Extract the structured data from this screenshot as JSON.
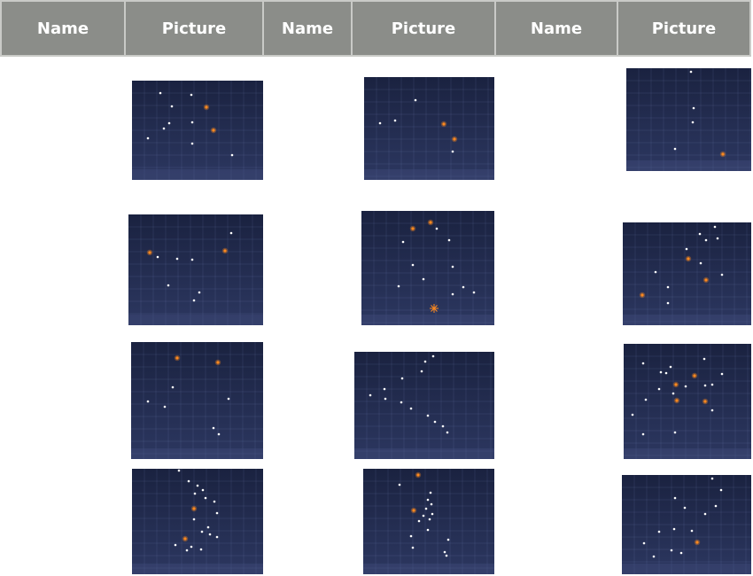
{
  "table": {
    "headers": [
      "Name",
      "Picture",
      "Name",
      "Picture",
      "Name",
      "Picture"
    ],
    "rows": [
      [
        {
          "name": "",
          "picture": "constellation-image"
        },
        {
          "name": "",
          "picture": "constellation-image"
        },
        {
          "name": "",
          "picture": "constellation-image"
        }
      ],
      [
        {
          "name": "",
          "picture": "constellation-image"
        },
        {
          "name": "",
          "picture": "constellation-image"
        },
        {
          "name": "",
          "picture": "constellation-image"
        }
      ],
      [
        {
          "name": "",
          "picture": "constellation-image"
        },
        {
          "name": "",
          "picture": "constellation-image"
        },
        {
          "name": "",
          "picture": "constellation-image"
        }
      ],
      [
        {
          "name": "",
          "picture": "constellation-image"
        },
        {
          "name": "",
          "picture": "constellation-image"
        },
        {
          "name": "",
          "picture": "constellation-image"
        }
      ]
    ]
  },
  "colors": {
    "header_bg": "#8b8d89",
    "header_text": "#ffffff",
    "sky_top": "#1a2240",
    "sky_bottom": "#2c3760",
    "star_white": "#ffffff",
    "star_orange": "#ff8a1e"
  }
}
